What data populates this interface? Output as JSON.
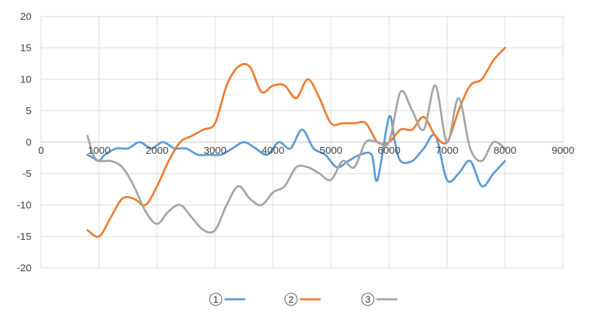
{
  "chart_data": {
    "type": "line",
    "title": "",
    "xlabel": "",
    "ylabel": "",
    "xlim": [
      0,
      9000
    ],
    "ylim": [
      -20,
      20
    ],
    "x_ticks": [
      "0",
      "1000",
      "2000",
      "3000",
      "4000",
      "5000",
      "6000",
      "7000",
      "8000",
      "9000"
    ],
    "y_ticks": [
      "20",
      "15",
      "10",
      "5",
      "0",
      "-5",
      "-10",
      "-15",
      "-20"
    ],
    "grid": true,
    "legend_position": "bottom",
    "series": [
      {
        "name": "1",
        "color": "#5b9bd5",
        "x": [
          800,
          900,
          1000,
          1100,
          1300,
          1500,
          1700,
          1900,
          2100,
          2300,
          2500,
          2700,
          2900,
          3100,
          3300,
          3500,
          3700,
          3900,
          4100,
          4300,
          4500,
          4700,
          4900,
          5100,
          5300,
          5500,
          5700,
          5800,
          6000,
          6100,
          6200,
          6400,
          6600,
          6800,
          7000,
          7200,
          7400,
          7600,
          7800,
          8000
        ],
        "y": [
          -2,
          -2.5,
          -3,
          -2,
          -1,
          -1,
          0,
          -1,
          0,
          -1,
          -1,
          -2,
          -2,
          -2,
          -1,
          0,
          -1,
          -2,
          0,
          -1,
          2,
          -1,
          -2,
          -4,
          -3,
          -2,
          -2,
          -6,
          4,
          0,
          -3,
          -3,
          -1,
          1,
          -6,
          -5,
          -3,
          -7,
          -5,
          -3
        ]
      },
      {
        "name": "2",
        "color": "#ed7d31",
        "x": [
          800,
          1000,
          1200,
          1400,
          1600,
          1800,
          2000,
          2200,
          2400,
          2600,
          2800,
          3000,
          3200,
          3400,
          3600,
          3800,
          4000,
          4200,
          4400,
          4600,
          4800,
          5000,
          5200,
          5400,
          5600,
          5800,
          6000,
          6200,
          6400,
          6600,
          6800,
          7000,
          7200,
          7400,
          7600,
          7800,
          8000
        ],
        "y": [
          -14,
          -15,
          -12,
          -9,
          -9,
          -10,
          -7,
          -3,
          0,
          1,
          2,
          3,
          9,
          12,
          12,
          8,
          9,
          9,
          7,
          10,
          7,
          3,
          3,
          3,
          3,
          0,
          0,
          2,
          2,
          4,
          1,
          0,
          5,
          9,
          10,
          13,
          15
        ]
      },
      {
        "name": "3",
        "color": "#a5a5a5",
        "x": [
          800,
          900,
          1000,
          1200,
          1400,
          1600,
          1800,
          2000,
          2200,
          2400,
          2600,
          2800,
          3000,
          3200,
          3400,
          3600,
          3800,
          4000,
          4200,
          4400,
          4600,
          4800,
          5000,
          5200,
          5400,
          5600,
          5800,
          6000,
          6200,
          6400,
          6600,
          6800,
          7000,
          7200,
          7400,
          7600,
          7800,
          8000
        ],
        "y": [
          1,
          -2,
          -3,
          -3,
          -4,
          -7,
          -11,
          -13,
          -11,
          -10,
          -12,
          -14,
          -14,
          -10,
          -7,
          -9,
          -10,
          -8,
          -7,
          -4,
          -4,
          -5,
          -6,
          -3,
          -4,
          0,
          0,
          0,
          8,
          5,
          2,
          9,
          0,
          7,
          -1,
          -3,
          0,
          -1
        ]
      }
    ]
  }
}
